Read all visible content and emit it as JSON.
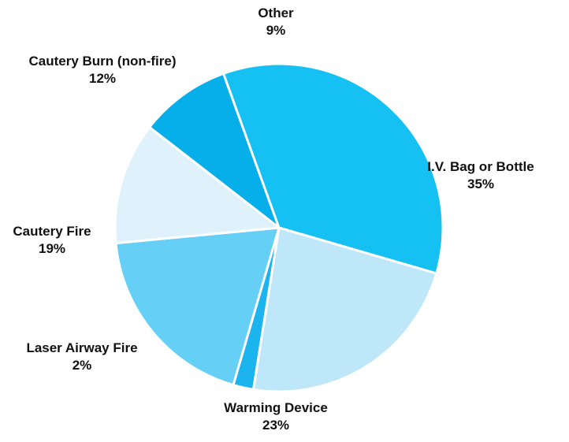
{
  "chart_data": {
    "type": "pie",
    "title": "",
    "slices": [
      {
        "label": "Other",
        "value": 9,
        "value_label": "9%",
        "color": "#06aeea"
      },
      {
        "label": "I.V. Bag or Bottle",
        "value": 35,
        "value_label": "35%",
        "color": "#15c0f2"
      },
      {
        "label": "Warming Device",
        "value": 23,
        "value_label": "23%",
        "color": "#bfe7fa"
      },
      {
        "label": "Laser Airway Fire",
        "value": 2,
        "value_label": "2%",
        "color": "#1bb4ee"
      },
      {
        "label": "Cautery Fire",
        "value": 19,
        "value_label": "19%",
        "color": "#66cff5"
      },
      {
        "label": "Cautery Burn (non-fire)",
        "value": 12,
        "value_label": "12%",
        "color": "#dff2fc"
      }
    ],
    "start_angle_deg": -52.2,
    "direction": "clockwise",
    "legend": "none",
    "slice_separator_color": "#ffffff"
  }
}
